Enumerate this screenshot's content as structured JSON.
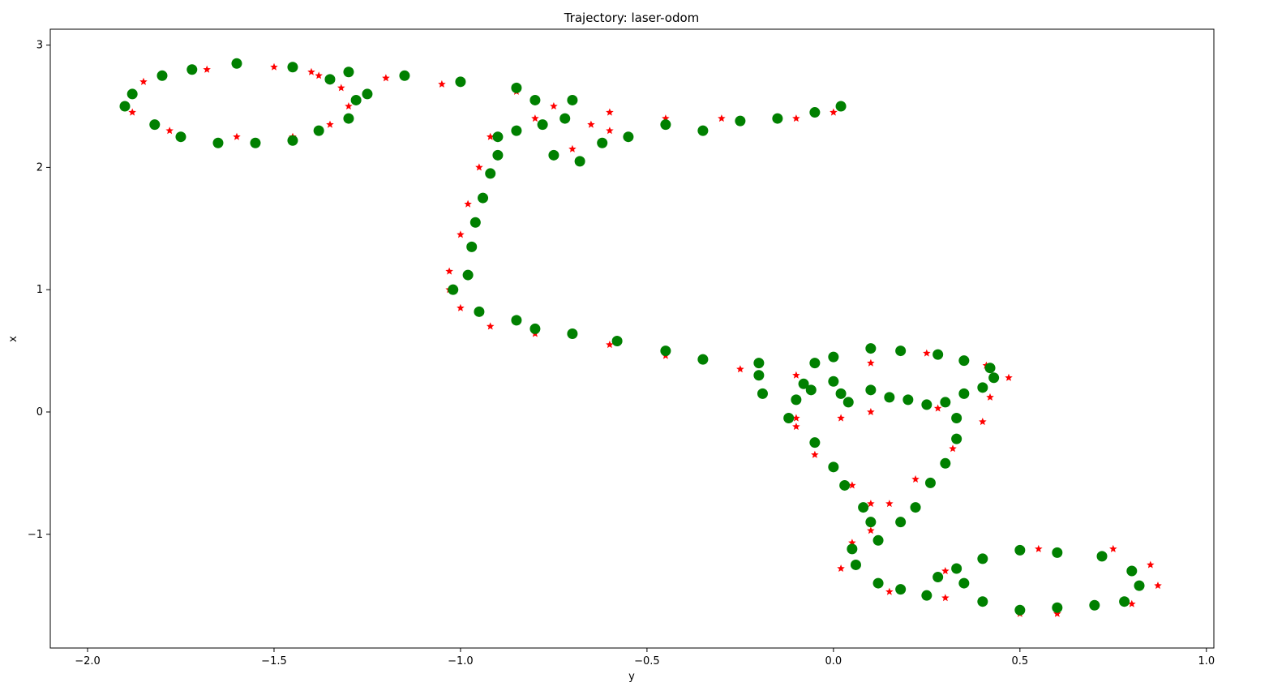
{
  "chart_data": {
    "type": "scatter",
    "title": "Trajectory: laser-odom",
    "xlabel": "y",
    "ylabel": "x",
    "xlim": [
      -2.1,
      1.02
    ],
    "ylim": [
      -1.93,
      3.13
    ],
    "xticks": [
      -2.0,
      -1.5,
      -1.0,
      -0.5,
      0.0,
      0.5,
      1.0
    ],
    "xtick_labels": [
      "−2.0",
      "−1.5",
      "−1.0",
      "−0.5",
      "0.0",
      "0.5",
      "1.0"
    ],
    "yticks": [
      3,
      2,
      1,
      0,
      -1
    ],
    "ytick_labels": [
      "3",
      "2",
      "1",
      "0",
      "−1"
    ],
    "grid": false,
    "series": [
      {
        "marker": "star",
        "color": "#ff0000",
        "points": [
          [
            -0.1,
            -0.05
          ],
          [
            0.1,
            0.4
          ],
          [
            0.25,
            0.48
          ],
          [
            0.41,
            0.38
          ],
          [
            0.47,
            0.28
          ],
          [
            0.42,
            0.12
          ],
          [
            0.28,
            0.03
          ],
          [
            0.1,
            -0.0
          ],
          [
            0.02,
            -0.05
          ],
          [
            -0.1,
            -0.12
          ],
          [
            -0.05,
            -0.35
          ],
          [
            0.05,
            -0.6
          ],
          [
            0.1,
            -0.75
          ],
          [
            0.15,
            -0.75
          ],
          [
            0.22,
            -0.55
          ],
          [
            0.32,
            -0.3
          ],
          [
            0.4,
            -0.08
          ],
          [
            0.1,
            -0.97
          ],
          [
            0.05,
            -1.07
          ],
          [
            0.02,
            -1.28
          ],
          [
            0.15,
            -1.47
          ],
          [
            0.3,
            -1.52
          ],
          [
            0.3,
            -1.3
          ],
          [
            0.55,
            -1.12
          ],
          [
            0.75,
            -1.12
          ],
          [
            0.85,
            -1.25
          ],
          [
            0.87,
            -1.42
          ],
          [
            0.8,
            -1.57
          ],
          [
            0.6,
            -1.65
          ],
          [
            0.5,
            -1.65
          ],
          [
            -0.1,
            0.3
          ],
          [
            -0.25,
            0.35
          ],
          [
            -0.45,
            0.46
          ],
          [
            -0.6,
            0.55
          ],
          [
            -0.8,
            0.64
          ],
          [
            -0.92,
            0.7
          ],
          [
            -1.0,
            0.85
          ],
          [
            -1.03,
            1.0
          ],
          [
            -1.03,
            1.15
          ],
          [
            -1.0,
            1.45
          ],
          [
            -0.98,
            1.7
          ],
          [
            -0.95,
            2.0
          ],
          [
            -0.92,
            2.25
          ],
          [
            -0.8,
            2.4
          ],
          [
            -0.75,
            2.5
          ],
          [
            -0.6,
            2.45
          ],
          [
            -0.65,
            2.35
          ],
          [
            -0.7,
            2.15
          ],
          [
            -0.6,
            2.3
          ],
          [
            -0.45,
            2.4
          ],
          [
            -0.3,
            2.4
          ],
          [
            -0.1,
            2.4
          ],
          [
            0.0,
            2.45
          ],
          [
            -0.85,
            2.62
          ],
          [
            -1.05,
            2.68
          ],
          [
            -1.2,
            2.73
          ],
          [
            -1.4,
            2.78
          ],
          [
            -1.5,
            2.82
          ],
          [
            -1.68,
            2.8
          ],
          [
            -1.85,
            2.7
          ],
          [
            -1.88,
            2.45
          ],
          [
            -1.78,
            2.3
          ],
          [
            -1.6,
            2.25
          ],
          [
            -1.45,
            2.25
          ],
          [
            -1.35,
            2.35
          ],
          [
            -1.3,
            2.5
          ],
          [
            -1.32,
            2.65
          ],
          [
            -1.38,
            2.75
          ]
        ]
      },
      {
        "marker": "circle",
        "color": "#008000",
        "points": [
          [
            -0.08,
            0.23
          ],
          [
            -0.06,
            0.18
          ],
          [
            0.0,
            0.25
          ],
          [
            0.02,
            0.15
          ],
          [
            0.04,
            0.08
          ],
          [
            0.1,
            0.18
          ],
          [
            0.15,
            0.12
          ],
          [
            0.2,
            0.1
          ],
          [
            0.25,
            0.06
          ],
          [
            0.3,
            0.08
          ],
          [
            0.35,
            0.15
          ],
          [
            0.4,
            0.2
          ],
          [
            0.43,
            0.28
          ],
          [
            0.42,
            0.36
          ],
          [
            0.35,
            0.42
          ],
          [
            0.28,
            0.47
          ],
          [
            0.18,
            0.5
          ],
          [
            0.1,
            0.52
          ],
          [
            0.0,
            0.45
          ],
          [
            -0.05,
            0.4
          ],
          [
            -0.2,
            0.3
          ],
          [
            -0.19,
            0.15
          ],
          [
            -0.12,
            -0.05
          ],
          [
            -0.1,
            0.1
          ],
          [
            -0.05,
            -0.25
          ],
          [
            0.0,
            -0.45
          ],
          [
            0.03,
            -0.6
          ],
          [
            0.08,
            -0.78
          ],
          [
            0.1,
            -0.9
          ],
          [
            0.12,
            -1.05
          ],
          [
            0.18,
            -0.9
          ],
          [
            0.22,
            -0.78
          ],
          [
            0.26,
            -0.58
          ],
          [
            0.3,
            -0.42
          ],
          [
            0.33,
            -0.22
          ],
          [
            0.33,
            -0.05
          ],
          [
            0.05,
            -1.12
          ],
          [
            0.06,
            -1.25
          ],
          [
            0.12,
            -1.4
          ],
          [
            0.18,
            -1.45
          ],
          [
            0.25,
            -1.5
          ],
          [
            0.28,
            -1.35
          ],
          [
            0.35,
            -1.4
          ],
          [
            0.4,
            -1.55
          ],
          [
            0.5,
            -1.62
          ],
          [
            0.6,
            -1.6
          ],
          [
            0.7,
            -1.58
          ],
          [
            0.78,
            -1.55
          ],
          [
            0.82,
            -1.42
          ],
          [
            0.8,
            -1.3
          ],
          [
            0.72,
            -1.18
          ],
          [
            0.6,
            -1.15
          ],
          [
            0.5,
            -1.13
          ],
          [
            0.4,
            -1.2
          ],
          [
            0.33,
            -1.28
          ],
          [
            -0.2,
            0.4
          ],
          [
            -0.35,
            0.43
          ],
          [
            -0.45,
            0.5
          ],
          [
            -0.58,
            0.58
          ],
          [
            -0.7,
            0.64
          ],
          [
            -0.8,
            0.68
          ],
          [
            -0.85,
            0.75
          ],
          [
            -0.95,
            0.82
          ],
          [
            -1.02,
            1.0
          ],
          [
            -0.98,
            1.12
          ],
          [
            -0.97,
            1.35
          ],
          [
            -0.96,
            1.55
          ],
          [
            -0.94,
            1.75
          ],
          [
            -0.92,
            1.95
          ],
          [
            -0.9,
            2.1
          ],
          [
            -0.9,
            2.25
          ],
          [
            -0.85,
            2.3
          ],
          [
            -0.78,
            2.35
          ],
          [
            -0.72,
            2.4
          ],
          [
            -0.75,
            2.1
          ],
          [
            -0.68,
            2.05
          ],
          [
            -0.62,
            2.2
          ],
          [
            -0.55,
            2.25
          ],
          [
            -0.45,
            2.35
          ],
          [
            -0.35,
            2.3
          ],
          [
            -0.25,
            2.38
          ],
          [
            -0.15,
            2.4
          ],
          [
            -0.05,
            2.45
          ],
          [
            0.02,
            2.5
          ],
          [
            -0.8,
            2.55
          ],
          [
            -0.7,
            2.55
          ],
          [
            -0.85,
            2.65
          ],
          [
            -1.0,
            2.7
          ],
          [
            -1.15,
            2.75
          ],
          [
            -1.3,
            2.78
          ],
          [
            -1.45,
            2.82
          ],
          [
            -1.6,
            2.85
          ],
          [
            -1.72,
            2.8
          ],
          [
            -1.8,
            2.75
          ],
          [
            -1.88,
            2.6
          ],
          [
            -1.9,
            2.5
          ],
          [
            -1.82,
            2.35
          ],
          [
            -1.75,
            2.25
          ],
          [
            -1.65,
            2.2
          ],
          [
            -1.55,
            2.2
          ],
          [
            -1.45,
            2.22
          ],
          [
            -1.38,
            2.3
          ],
          [
            -1.3,
            2.4
          ],
          [
            -1.28,
            2.55
          ],
          [
            -1.35,
            2.72
          ],
          [
            -1.25,
            2.6
          ]
        ]
      }
    ]
  }
}
